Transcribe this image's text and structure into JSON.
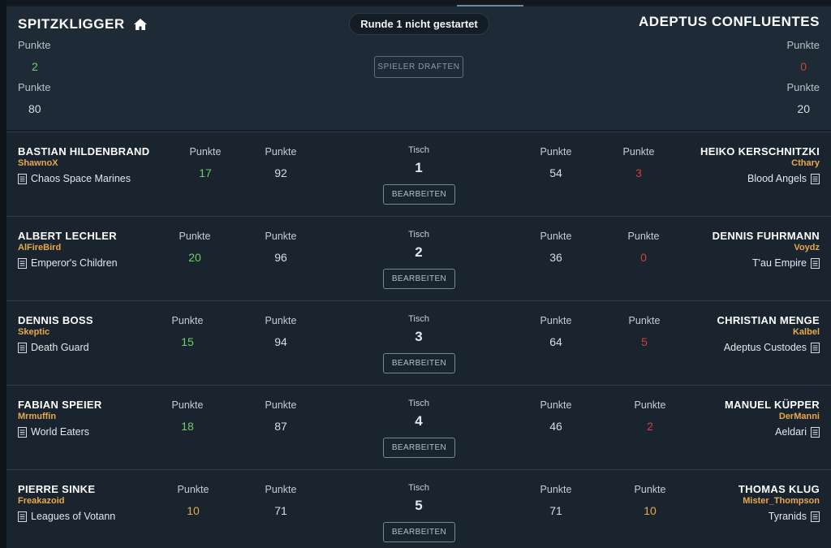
{
  "header": {
    "left_team": "SPITZKLIGGER",
    "right_team": "ADEPTUS CONFLUENTES",
    "round_status": "Runde 1 nicht gestartet",
    "draft_button": "SPIELER DRAFTEN",
    "label": "Punkte",
    "left_points_a": "2",
    "left_points_b": "80",
    "right_points_a": "0",
    "right_points_b": "20"
  },
  "labels": {
    "punkte": "Punkte",
    "tisch": "Tisch",
    "edit": "BEARBEITEN"
  },
  "matches": [
    {
      "left": {
        "name": "BASTIAN HILDENBRAND",
        "nick": "ShawnoX",
        "army": "Chaos Space Marines"
      },
      "right": {
        "name": "HEIKO KERSCHNITZKI",
        "nick": "Cthary",
        "army": "Blood Angels"
      },
      "table": "1",
      "left_score": "17",
      "left_total": "92",
      "right_total": "54",
      "right_score": "3"
    },
    {
      "left": {
        "name": "ALBERT LECHLER",
        "nick": "AlFireBird",
        "army": "Emperor's Children"
      },
      "right": {
        "name": "DENNIS FUHRMANN",
        "nick": "Voydz",
        "army": "T'au Empire"
      },
      "table": "2",
      "left_score": "20",
      "left_total": "96",
      "right_total": "36",
      "right_score": "0"
    },
    {
      "left": {
        "name": "DENNIS BOSS",
        "nick": "Skeptic",
        "army": "Death Guard"
      },
      "right": {
        "name": "CHRISTIAN MENGE",
        "nick": "Kalbel",
        "army": "Adeptus Custodes"
      },
      "table": "3",
      "left_score": "15",
      "left_total": "94",
      "right_total": "64",
      "right_score": "5"
    },
    {
      "left": {
        "name": "FABIAN SPEIER",
        "nick": "Mrmuffin",
        "army": "World Eaters"
      },
      "right": {
        "name": "MANUEL KÜPPER",
        "nick": "DerManni",
        "army": "Aeldari"
      },
      "table": "4",
      "left_score": "18",
      "left_total": "87",
      "right_total": "46",
      "right_score": "2"
    },
    {
      "left": {
        "name": "PIERRE SINKE",
        "nick": "Freakazoid",
        "army": "Leagues of Votann"
      },
      "right": {
        "name": "THOMAS KLUG",
        "nick": "Mister_Thompson",
        "army": "Tyranids"
      },
      "table": "5",
      "left_score": "10",
      "left_total": "71",
      "right_total": "71",
      "right_score": "10"
    }
  ],
  "colors": {
    "win": "#6fcf67",
    "loss": "#d0413b",
    "draw": "#e6a94e",
    "nickname": "#e6a94e",
    "background": "#141c25"
  },
  "icons": {
    "home": "home-icon",
    "army": "clipboard-icon"
  }
}
